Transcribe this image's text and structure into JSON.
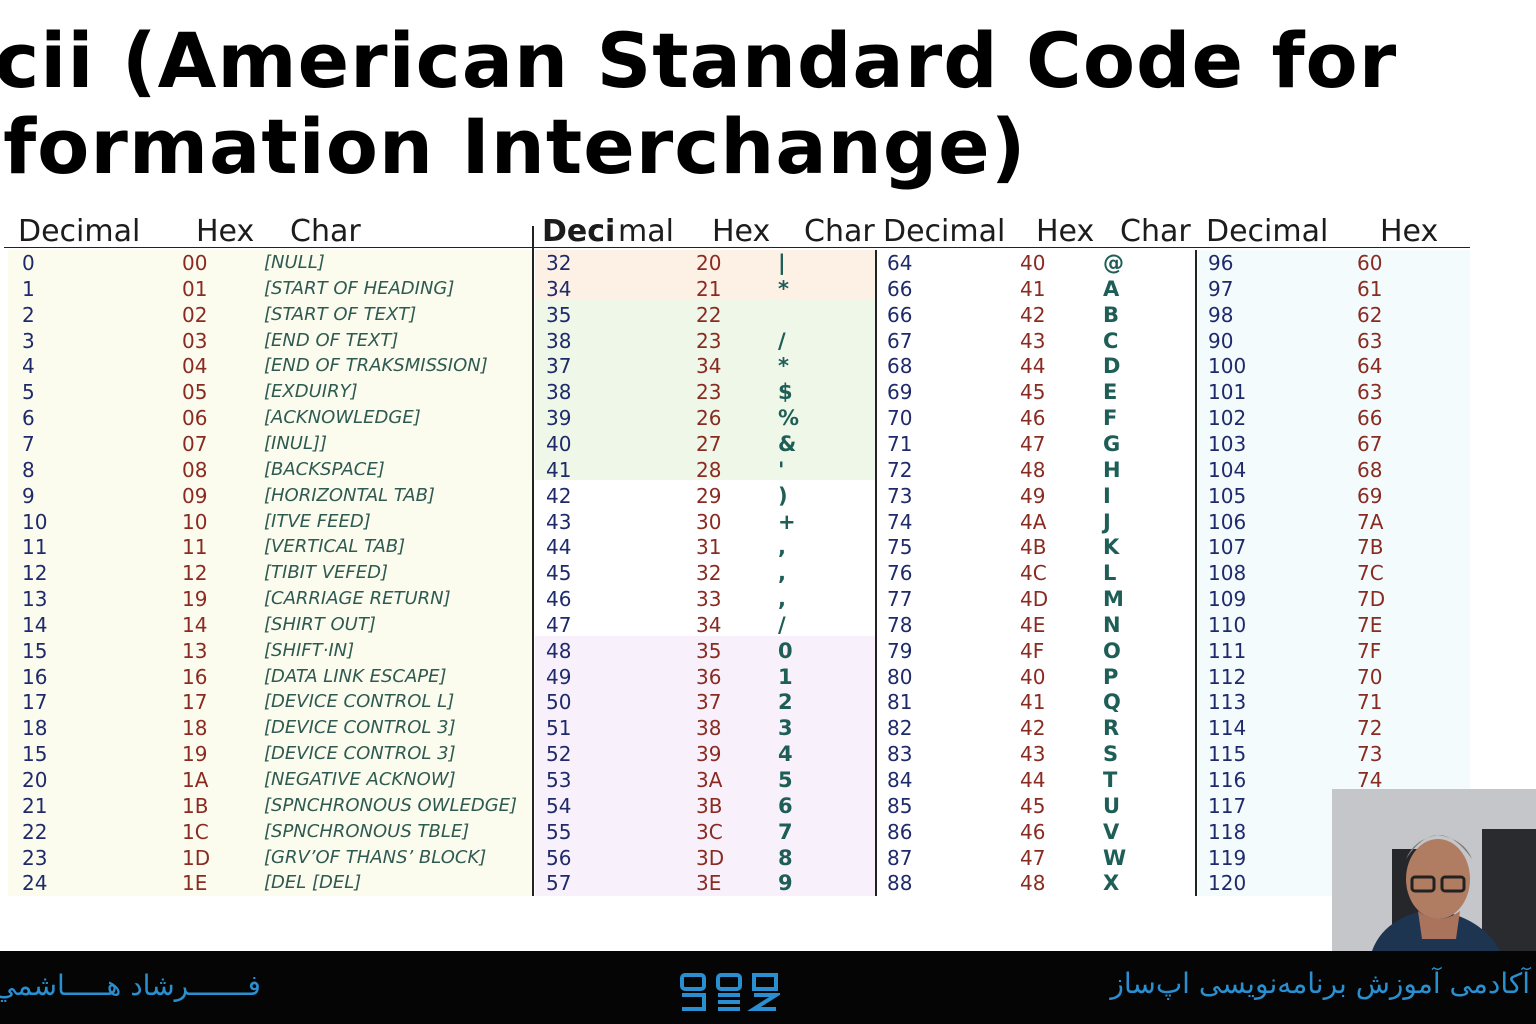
{
  "title": {
    "line1": "scii (American Standard Code for",
    "line2": "nformation Interchange)"
  },
  "headers": {
    "p1": [
      "Decimal",
      "Hex",
      "Char"
    ],
    "p2": [
      "Deci",
      "mal",
      "Hex",
      "Char"
    ],
    "p3": [
      "Decimal",
      "Hex",
      "Char"
    ],
    "p4": [
      "Decimal",
      "Hex"
    ]
  },
  "panel1": [
    [
      "0",
      "00",
      "[NULL]"
    ],
    [
      "1",
      "01",
      "[START OF HEADING]"
    ],
    [
      "2",
      "02",
      "[START OF TEXT]"
    ],
    [
      "3",
      "03",
      "[END OF TEXT]"
    ],
    [
      "4",
      "04",
      "[END OF TRAKSMISSION]"
    ],
    [
      "5",
      "05",
      "[EXDUIRY]"
    ],
    [
      "6",
      "06",
      "[ACKNOWLEDGE]"
    ],
    [
      "7",
      "07",
      "[INUL]]"
    ],
    [
      "8",
      "08",
      "[BACKSPACE]"
    ],
    [
      "9",
      "09",
      "[HORIZONTAL TAB]"
    ],
    [
      "10",
      "10",
      "[ITVE FEED]"
    ],
    [
      "11",
      "11",
      "[VERTICAL TAB]"
    ],
    [
      "12",
      "12",
      "[TIBIT VEFED]"
    ],
    [
      "13",
      "19",
      "[CARRIAGE RETURN]"
    ],
    [
      "14",
      "14",
      "[SHIRT OUT]"
    ],
    [
      "15",
      "13",
      "[SHIFT·IN]"
    ],
    [
      "16",
      "16",
      "[DATA LINK ESCAPE]"
    ],
    [
      "17",
      "17",
      "[DEVICE CONTROL L]"
    ],
    [
      "18",
      "18",
      "[DEVICE CONTROL 3]"
    ],
    [
      "15",
      "19",
      "[DEVICE CONTROL 3]"
    ],
    [
      "20",
      "1A",
      "[NEGATIVE ACKNOW]"
    ],
    [
      "21",
      "1B",
      "[SPNCHRONOUS OWLEDGE]"
    ],
    [
      "22",
      "1C",
      "[SPNCHRONOUS TBLE]"
    ],
    [
      "23",
      "1D",
      "[GRV’OF THANS’ BLOCK]"
    ],
    [
      "24",
      "1E",
      "[DEL [DEL]"
    ]
  ],
  "panel2": [
    [
      "32",
      "20",
      "|"
    ],
    [
      "34",
      "21",
      "*"
    ],
    [
      "35",
      "22",
      ""
    ],
    [
      "38",
      "23",
      "/"
    ],
    [
      "37",
      "34",
      "*"
    ],
    [
      "38",
      "23",
      "$"
    ],
    [
      "39",
      "26",
      "%"
    ],
    [
      "40",
      "27",
      "&"
    ],
    [
      "41",
      "28",
      "'"
    ],
    [
      "42",
      "29",
      ")"
    ],
    [
      "43",
      "30",
      "+"
    ],
    [
      "44",
      "31",
      ","
    ],
    [
      "45",
      "32",
      ","
    ],
    [
      "46",
      "33",
      ","
    ],
    [
      "47",
      "34",
      "/"
    ],
    [
      "48",
      "35",
      "0"
    ],
    [
      "49",
      "36",
      "1"
    ],
    [
      "50",
      "37",
      "2"
    ],
    [
      "51",
      "38",
      "3"
    ],
    [
      "52",
      "39",
      "4"
    ],
    [
      "53",
      "3A",
      "5"
    ],
    [
      "54",
      "3B",
      "6"
    ],
    [
      "55",
      "3C",
      "7"
    ],
    [
      "56",
      "3D",
      "8"
    ],
    [
      "57",
      "3E",
      "9"
    ]
  ],
  "panel3": [
    [
      "64",
      "40",
      "@"
    ],
    [
      "66",
      "41",
      "A"
    ],
    [
      "66",
      "42",
      "B"
    ],
    [
      "67",
      "43",
      "C"
    ],
    [
      "68",
      "44",
      "D"
    ],
    [
      "69",
      "45",
      "E"
    ],
    [
      "70",
      "46",
      "F"
    ],
    [
      "71",
      "47",
      "G"
    ],
    [
      "72",
      "48",
      "H"
    ],
    [
      "73",
      "49",
      "I"
    ],
    [
      "74",
      "4A",
      "J"
    ],
    [
      "75",
      "4B",
      "K"
    ],
    [
      "76",
      "4C",
      "L"
    ],
    [
      "77",
      "4D",
      "M"
    ],
    [
      "78",
      "4E",
      "N"
    ],
    [
      "79",
      "4F",
      "O"
    ],
    [
      "80",
      "40",
      "P"
    ],
    [
      "81",
      "41",
      "Q"
    ],
    [
      "82",
      "42",
      "R"
    ],
    [
      "83",
      "43",
      "S"
    ],
    [
      "84",
      "44",
      "T"
    ],
    [
      "85",
      "45",
      "U"
    ],
    [
      "86",
      "46",
      "V"
    ],
    [
      "87",
      "47",
      "W"
    ],
    [
      "88",
      "48",
      "X"
    ]
  ],
  "panel4": [
    [
      "96",
      "60"
    ],
    [
      "97",
      "61"
    ],
    [
      "98",
      "62"
    ],
    [
      "90",
      "63"
    ],
    [
      "100",
      "64"
    ],
    [
      "101",
      "63"
    ],
    [
      "102",
      "66"
    ],
    [
      "103",
      "67"
    ],
    [
      "104",
      "68"
    ],
    [
      "105",
      "69"
    ],
    [
      "106",
      "7A"
    ],
    [
      "107",
      "7B"
    ],
    [
      "108",
      "7C"
    ],
    [
      "109",
      "7D"
    ],
    [
      "110",
      "7E"
    ],
    [
      "111",
      "7F"
    ],
    [
      "112",
      "70"
    ],
    [
      "113",
      "71"
    ],
    [
      "114",
      "72"
    ],
    [
      "115",
      "73"
    ],
    [
      "116",
      "74"
    ],
    [
      "117",
      ""
    ],
    [
      "118",
      ""
    ],
    [
      "119",
      ""
    ],
    [
      "120",
      ""
    ]
  ],
  "footer": {
    "left_text": "فـــــــرشاد هـــــاشمي",
    "right_text": "آکادمی آموزش برنامه‌نویسی اپ‌ساز",
    "logo_name": "apsaz-logo"
  },
  "colors": {
    "decimal": "#1f2a6b",
    "hex": "#8a2b22",
    "char": "#1e5e57",
    "footer_text": "#2a8fd0"
  }
}
